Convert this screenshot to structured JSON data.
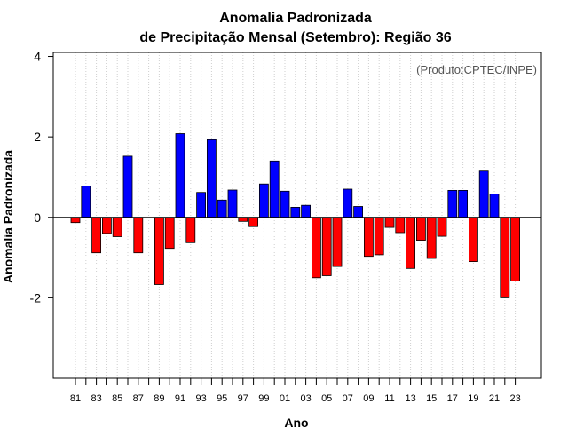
{
  "chart_data": {
    "type": "bar",
    "title_line1": "Anomalia Padronizada",
    "title_line2": "de Precipitação Mensal (Setembro): Região 36",
    "xlabel": "Ano",
    "ylabel": "Anomalia Padronizada",
    "source": "(Produto:CPTEC/INPE)",
    "ylim": [
      -4.0,
      4.1
    ],
    "yticks": [
      4,
      2,
      0,
      -2
    ],
    "ytick_labels": [
      "4",
      "2",
      "0",
      "-2"
    ],
    "xtick_labels": [
      "81",
      "83",
      "85",
      "87",
      "89",
      "91",
      "93",
      "95",
      "97",
      "99",
      "01",
      "03",
      "05",
      "07",
      "09",
      "11",
      "13",
      "15",
      "17",
      "19",
      "21",
      "23"
    ],
    "categories": [
      "80",
      "81",
      "82",
      "83",
      "84",
      "85",
      "86",
      "87",
      "88",
      "89",
      "90",
      "91",
      "92",
      "93",
      "94",
      "95",
      "96",
      "97",
      "98",
      "99",
      "00",
      "01",
      "02",
      "03",
      "04",
      "05",
      "06",
      "07",
      "08",
      "09",
      "10",
      "11",
      "12",
      "13",
      "14",
      "15",
      "16",
      "17",
      "18",
      "19",
      "20",
      "21",
      "22",
      "23"
    ],
    "values": [
      0,
      -0.13,
      0.78,
      -0.88,
      -0.4,
      -0.48,
      1.52,
      -0.88,
      0,
      -1.67,
      -0.77,
      2.08,
      -0.63,
      0.62,
      1.93,
      0.43,
      0.68,
      -0.1,
      -0.23,
      0.83,
      1.4,
      0.65,
      0.25,
      0.3,
      -1.5,
      -1.45,
      -1.22,
      0.7,
      0.27,
      -0.97,
      -0.93,
      -0.25,
      -0.38,
      -1.27,
      -0.57,
      -1.02,
      -0.47,
      0.67,
      0.67,
      -1.1,
      1.15,
      0.58,
      -2.0,
      -1.58
    ],
    "positive_color": "#0000ff",
    "negative_color": "#ff0000",
    "grid": true
  }
}
